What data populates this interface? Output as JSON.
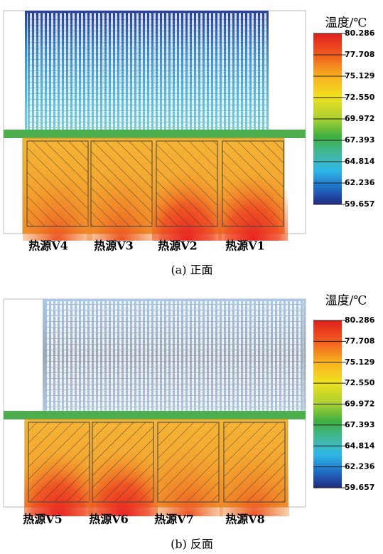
{
  "panels": [
    {
      "colorbar": {
        "title": "温度/℃",
        "ticks": [
          "80.286",
          "77.708",
          "75.129",
          "72.550",
          "69.972",
          "67.393",
          "64.814",
          "62.236",
          "59.657"
        ]
      },
      "sources": [
        "热源V4",
        "热源V3",
        "热源V2",
        "热源V1"
      ],
      "caption": "(a) 正面"
    },
    {
      "colorbar": {
        "title": "温度/℃",
        "ticks": [
          "80.286",
          "77.708",
          "75.129",
          "72.550",
          "69.972",
          "67.393",
          "64.814",
          "62.236",
          "59.657"
        ]
      },
      "sources": [
        "热源V5",
        "热源V6",
        "热源V7",
        "热源V8"
      ],
      "caption": "(b) 反面"
    }
  ]
}
